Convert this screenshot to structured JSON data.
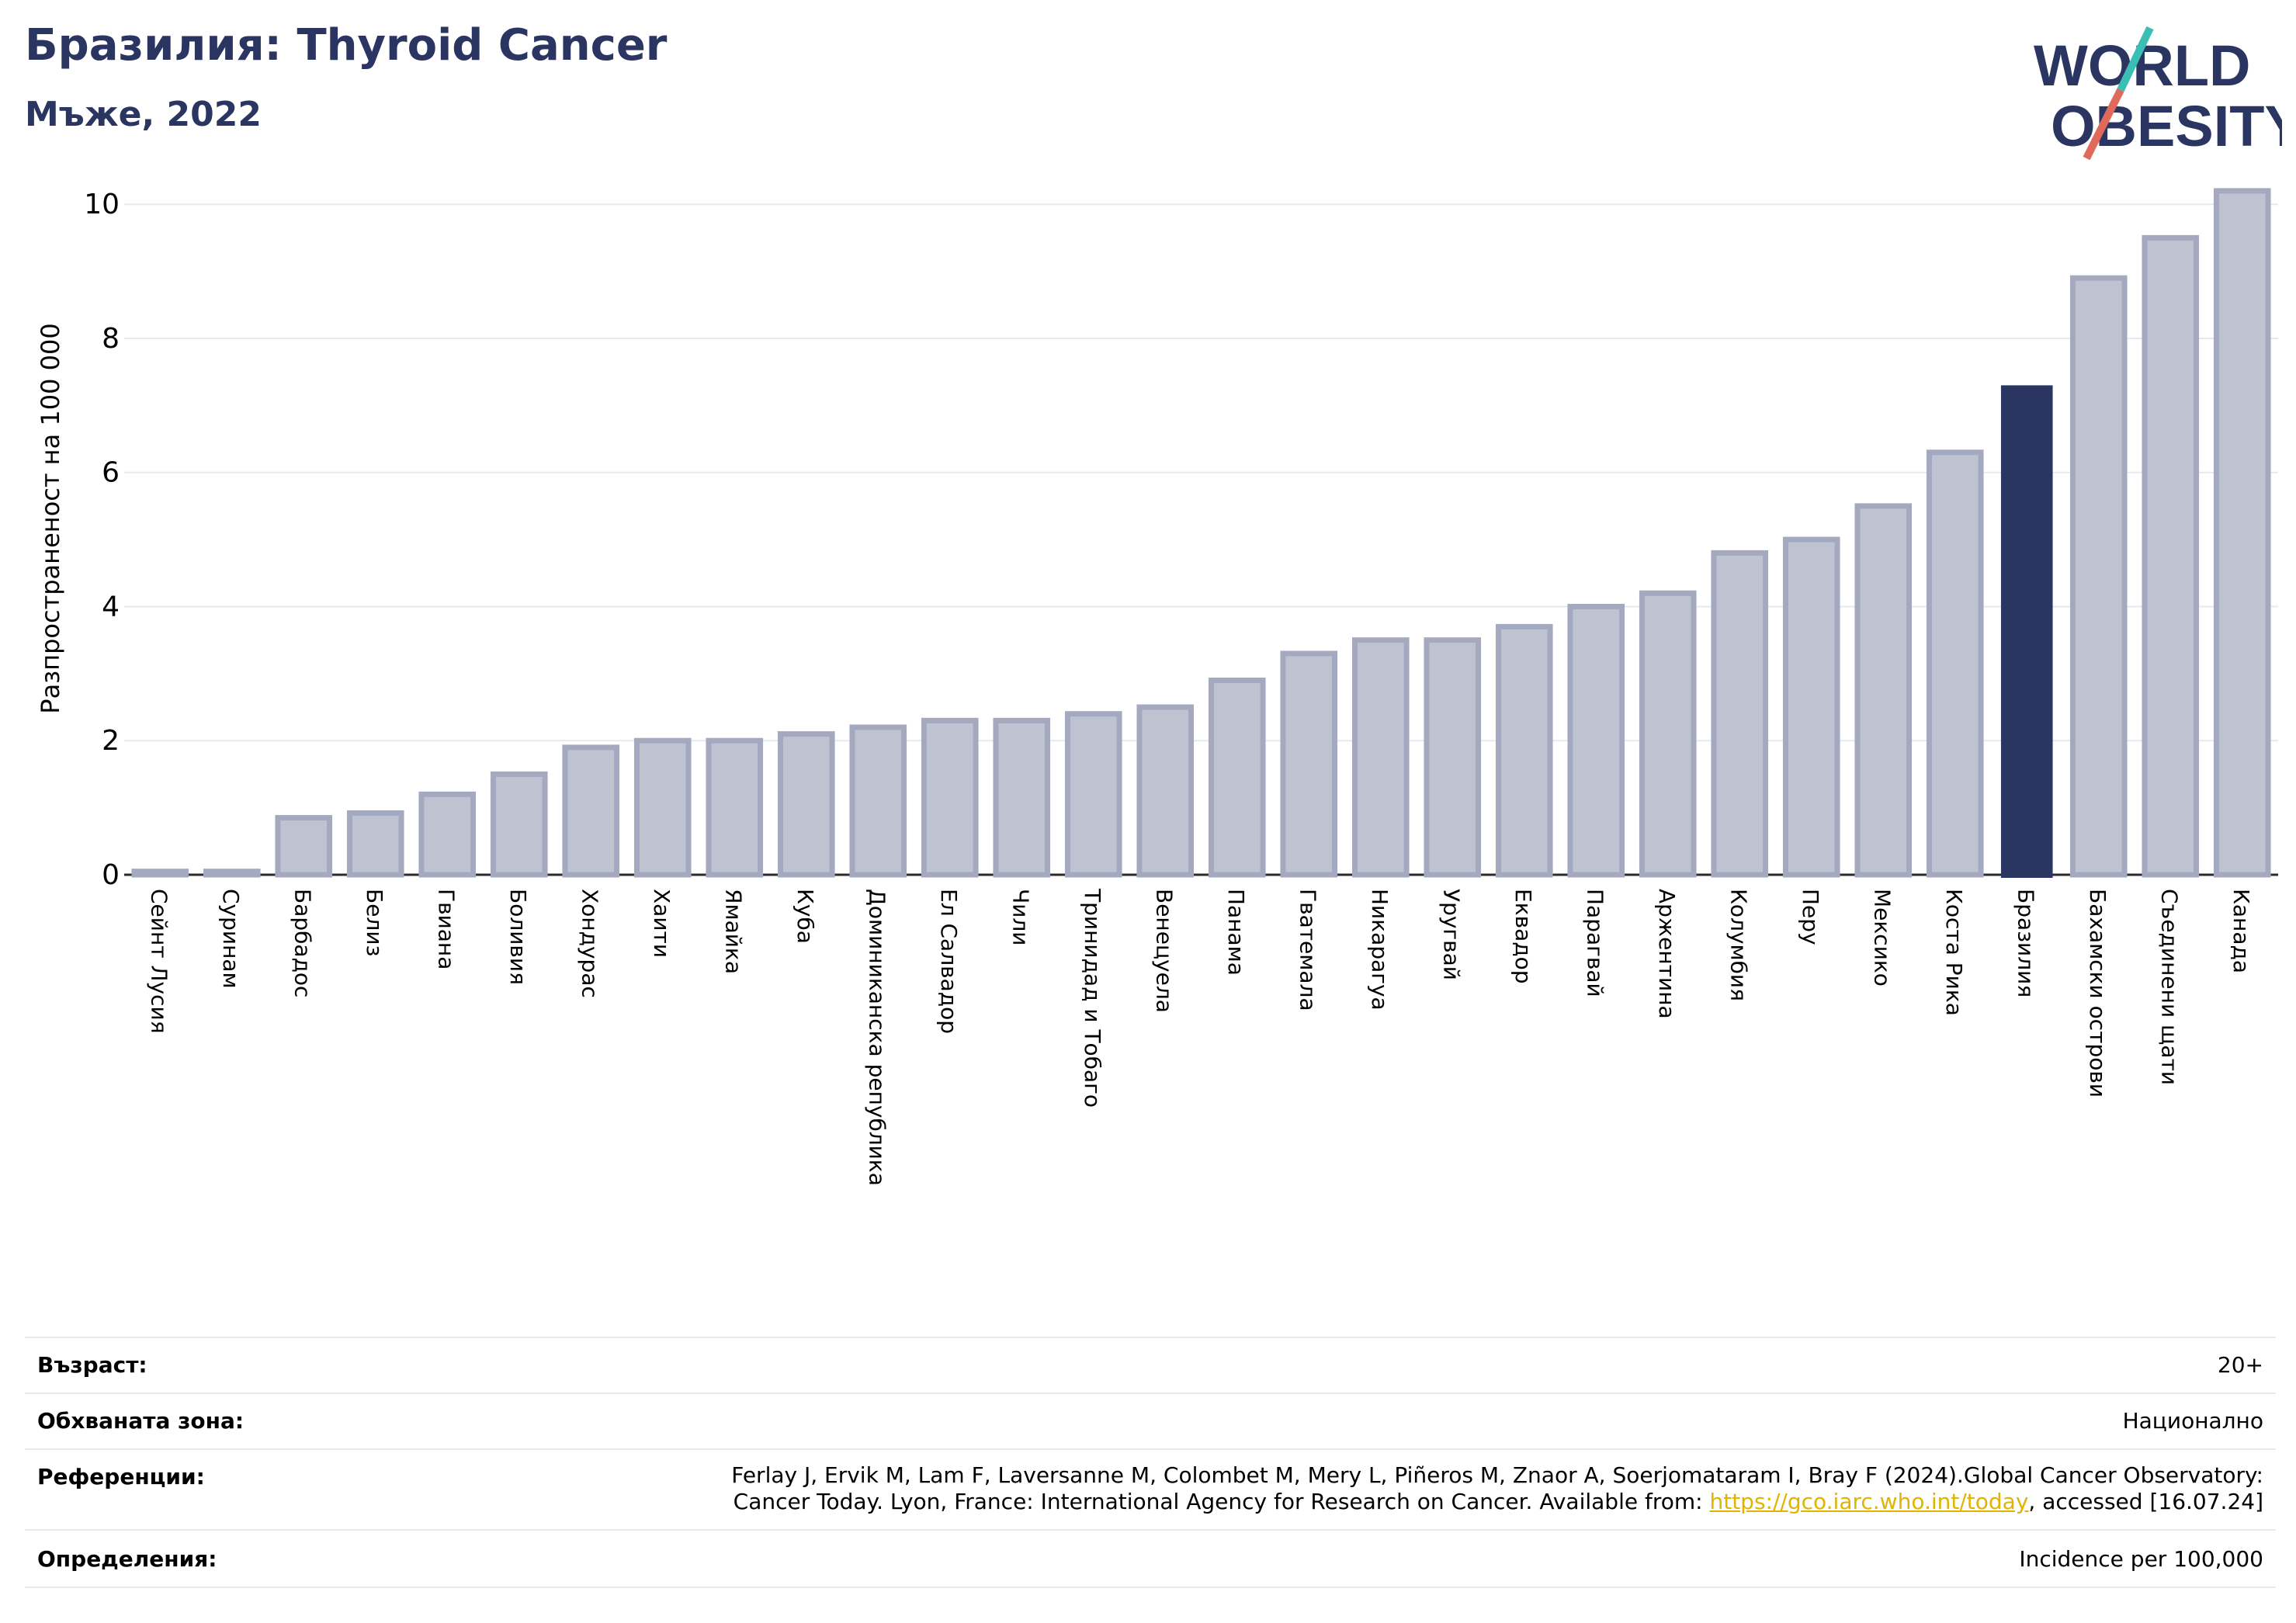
{
  "header": {
    "title": "Бразилия: Thyroid Cancer",
    "subtitle": "Мъже, 2022"
  },
  "logo": {
    "line1": "WORLD",
    "line2": "OBESITY",
    "text_color": "#2b3561",
    "slash_top_color": "#3bbfb5",
    "slash_bottom_color": "#e06a5a"
  },
  "chart_data": {
    "type": "bar",
    "ylabel": "Разпространеност  на 100 000",
    "ylim": [
      0,
      10.5
    ],
    "yticks": [
      0,
      2,
      4,
      6,
      8,
      10
    ],
    "grid": true,
    "highlight": "Бразилия",
    "bar_color": "#bfc3d1",
    "bar_edge_color": "#a4a9bf",
    "highlight_color": "#2b3561",
    "categories": [
      "Сейнт Лусия",
      "Суринам",
      "Барбадос",
      "Белиз",
      "Гвиана",
      "Боливия",
      "Хондурас",
      "Хаити",
      "Ямайка",
      "Куба",
      "Доминиканска република",
      "Ел Салвадор",
      "Чили",
      "Тринидад и Тобаго",
      "Венецуела",
      "Панама",
      "Гватемала",
      "Никарагуа",
      "Уругвай",
      "Еквадор",
      "Парагвай",
      "Аржентина",
      "Колумбия",
      "Перу",
      "Мексико",
      "Коста Рика",
      "Бразилия",
      "Бахамски острови",
      "Съединени щати",
      "Канада"
    ],
    "values": [
      0.05,
      0.05,
      0.85,
      0.92,
      1.2,
      1.5,
      1.9,
      2.0,
      2.0,
      2.1,
      2.2,
      2.3,
      2.3,
      2.4,
      2.5,
      2.9,
      3.3,
      3.5,
      3.5,
      3.7,
      4.0,
      4.2,
      4.8,
      5.0,
      5.5,
      6.3,
      7.3,
      8.9,
      9.5,
      10.2
    ]
  },
  "info": {
    "age_label": "Възраст:",
    "age_value": "20+",
    "area_label": "Обхваната зона:",
    "area_value": "Национално",
    "ref_label": "Референции:",
    "ref_line1": "Ferlay J, Ervik M, Lam F, Laversanne M, Colombet M, Mery L, Piñeros M, Znaor A, Soerjomataram I, Bray F (2024).Global Cancer Observatory:",
    "ref_line2_pre": "Cancer Today. Lyon, France: International Agency for Research on Cancer. Available from: ",
    "ref_link": "https://gco.iarc.who.int/today",
    "ref_line2_post": ", accessed [16.07.24]",
    "def_label": "Определения:",
    "def_value": "Incidence per 100,000"
  }
}
